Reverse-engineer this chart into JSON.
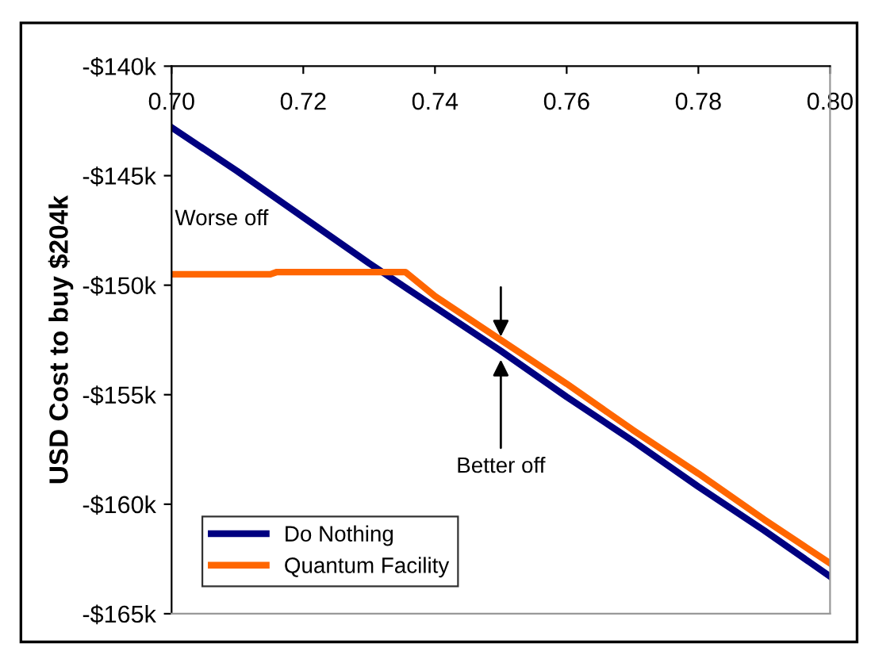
{
  "chart_data": {
    "type": "line",
    "ylabel": "USD Cost to buy $204k",
    "xlim": [
      0.7,
      0.8
    ],
    "ylim": [
      -165,
      -140
    ],
    "xticks": [
      {
        "value": 0.7,
        "label": "0.70"
      },
      {
        "value": 0.72,
        "label": "0.72"
      },
      {
        "value": 0.74,
        "label": "0.74"
      },
      {
        "value": 0.76,
        "label": "0.76"
      },
      {
        "value": 0.78,
        "label": "0.78"
      },
      {
        "value": 0.8,
        "label": "0.80"
      }
    ],
    "yticks": [
      {
        "value": -140,
        "label": "-$140k"
      },
      {
        "value": -145,
        "label": "-$145k"
      },
      {
        "value": -150,
        "label": "-$150k"
      },
      {
        "value": -155,
        "label": "-$155k"
      },
      {
        "value": -160,
        "label": "-$160k"
      },
      {
        "value": -165,
        "label": "-$165k"
      }
    ],
    "series": [
      {
        "name": "Do Nothing",
        "color": "#000080",
        "x": [
          0.7,
          0.71,
          0.72,
          0.73,
          0.74,
          0.75,
          0.76,
          0.77,
          0.78,
          0.79,
          0.8
        ],
        "values": [
          -142.8,
          -144.8,
          -146.9,
          -149.0,
          -151.0,
          -153.0,
          -155.1,
          -157.1,
          -159.2,
          -161.2,
          -163.3
        ]
      },
      {
        "name": "Quantum Facility",
        "color": "#ff6600",
        "x": [
          0.7,
          0.715,
          0.716,
          0.7355,
          0.74,
          0.75,
          0.76,
          0.77,
          0.78,
          0.79,
          0.8
        ],
        "values": [
          -149.5,
          -149.5,
          -149.4,
          -149.4,
          -150.5,
          -152.5,
          -154.5,
          -156.6,
          -158.6,
          -160.7,
          -162.7
        ]
      }
    ],
    "annotations": [
      "Worse off",
      {
        "text": "Better off",
        "x": 0.75,
        "y": -153.0
      }
    ],
    "legend": "bottom left",
    "grid": false,
    "marker": "none",
    "line_style": "solid"
  }
}
